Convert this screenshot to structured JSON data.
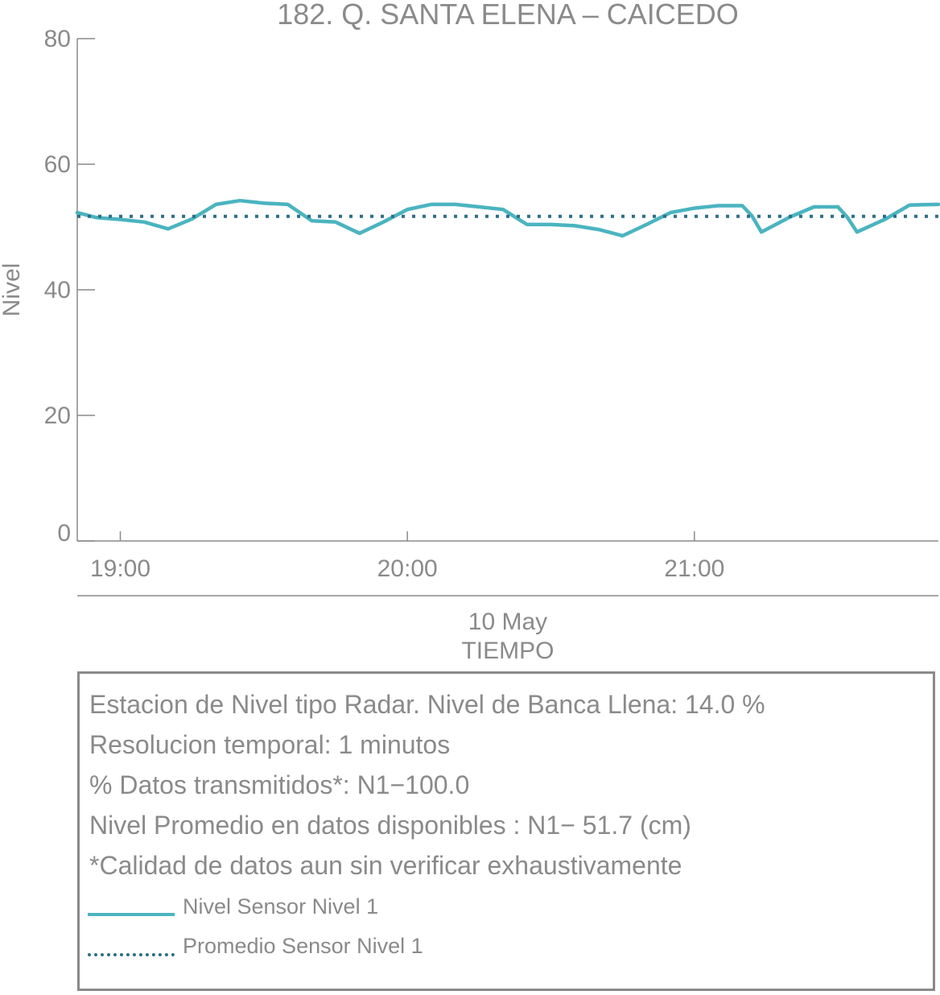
{
  "chart_data": {
    "type": "line",
    "title": "182. Q. SANTA ELENA – CAICEDO",
    "ylabel": "Nivel",
    "xlabel": "TIEMPO",
    "date_label": "10 May",
    "ylim": [
      0,
      80
    ],
    "yticks": [
      0,
      20,
      40,
      60,
      80
    ],
    "xlim": [
      "18:51",
      "21:51"
    ],
    "xticks": [
      "19:00",
      "20:00",
      "21:00"
    ],
    "grid": false,
    "series": [
      {
        "name": "Nivel Sensor Nivel 1",
        "color": "#4ab4c0",
        "style": "solid",
        "x": [
          "18:51",
          "18:55",
          "19:00",
          "19:05",
          "19:10",
          "19:15",
          "19:20",
          "19:25",
          "19:30",
          "19:35",
          "19:40",
          "19:45",
          "19:50",
          "19:55",
          "20:00",
          "20:05",
          "20:10",
          "20:15",
          "20:20",
          "20:25",
          "20:30",
          "20:35",
          "20:40",
          "20:45",
          "20:50",
          "20:55",
          "21:00",
          "21:05",
          "21:10",
          "21:12",
          "21:14",
          "21:20",
          "21:25",
          "21:30",
          "21:32",
          "21:34",
          "21:40",
          "21:45",
          "21:51"
        ],
        "values": [
          52.3,
          51.5,
          51.2,
          50.8,
          49.7,
          51.3,
          53.6,
          54.2,
          53.8,
          53.6,
          51.0,
          50.8,
          49.0,
          50.8,
          52.8,
          53.6,
          53.6,
          53.2,
          52.8,
          50.4,
          50.4,
          50.2,
          49.6,
          48.6,
          50.4,
          52.3,
          53.0,
          53.4,
          53.4,
          51.8,
          49.2,
          51.6,
          53.2,
          53.2,
          51.5,
          49.2,
          51.3,
          53.5,
          53.6
        ]
      },
      {
        "name": "Promedio Sensor Nivel 1",
        "color": "#2e6e84",
        "style": "dotted",
        "x": [
          "18:51",
          "21:51"
        ],
        "values": [
          51.7,
          51.7
        ]
      }
    ]
  },
  "info": {
    "line1": "Estacion de Nivel tipo Radar. Nivel de Banca Llena: 14.0 %",
    "line2": "Resolucion temporal: 1 minutos",
    "line3": "% Datos transmitidos*: N1−100.0",
    "line4": "Nivel Promedio en datos disponibles : N1− 51.7 (cm)",
    "line5": "*Calidad de datos aun sin verificar exhaustivamente"
  },
  "legend": {
    "item1": "Nivel Sensor Nivel 1",
    "item2": "Promedio Sensor Nivel 1"
  }
}
